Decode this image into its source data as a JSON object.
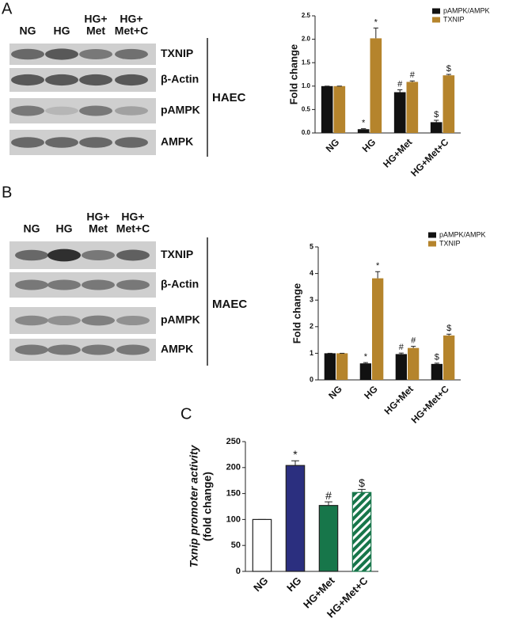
{
  "figure": {
    "blots": [
      {
        "label": "A",
        "lanes": [
          [
            "NG"
          ],
          [
            "HG"
          ],
          [
            "HG+",
            "Met"
          ],
          [
            "HG+",
            "Met+C"
          ]
        ],
        "rows": [
          "TXNIP",
          "β-Actin",
          "pAMPK",
          "AMPK"
        ],
        "cell": "HAEC"
      },
      {
        "label": "B",
        "lanes": [
          [
            "NG"
          ],
          [
            "HG"
          ],
          [
            "HG+",
            "Met"
          ],
          [
            "HG+",
            "Met+C"
          ]
        ],
        "rows": [
          "TXNIP",
          "β-Actin",
          "pAMPK",
          "AMPK"
        ],
        "cell": "MAEC"
      }
    ],
    "panel_c_label": "C"
  },
  "chart_data": [
    {
      "type": "bar",
      "ylabel": [
        "Fold change"
      ],
      "categories": [
        "NG",
        "HG",
        "HG+Met",
        "HG+Met+C"
      ],
      "series": [
        {
          "name": "pAMPK/AMPK",
          "color": "#111111",
          "values": [
            1.0,
            0.08,
            0.87,
            0.23
          ],
          "errors": [
            0,
            0.01,
            0.05,
            0.04
          ],
          "annotations": [
            null,
            "*",
            "#",
            "$"
          ]
        },
        {
          "name": "TXNIP",
          "color": "#b5842c",
          "values": [
            1.0,
            2.02,
            1.09,
            1.23
          ],
          "errors": [
            0,
            0.22,
            0.02,
            0.02
          ],
          "annotations": [
            null,
            "*",
            "#",
            "$"
          ]
        }
      ],
      "ylim": [
        0,
        2.5
      ],
      "yticks": [
        {
          "value": 0,
          "label": "0.0"
        },
        0.5,
        {
          "value": 1,
          "label": "1.0"
        },
        1.5,
        {
          "value": 2,
          "label": "2.0"
        },
        2.5
      ],
      "legend": "upper right"
    },
    {
      "type": "bar",
      "ylabel": [
        "Fold change"
      ],
      "categories": [
        "NG",
        "HG",
        "HG+Met",
        "HG+Met+C"
      ],
      "series": [
        {
          "name": "pAMPK/AMPK",
          "color": "#111111",
          "values": [
            1.0,
            0.62,
            0.97,
            0.6
          ],
          "errors": [
            0,
            0.03,
            0.04,
            0.03
          ],
          "annotations": [
            null,
            "*",
            "#",
            "$"
          ]
        },
        {
          "name": "TXNIP",
          "color": "#b5842c",
          "values": [
            1.0,
            3.82,
            1.2,
            1.67
          ],
          "errors": [
            0,
            0.25,
            0.06,
            0.05
          ],
          "annotations": [
            null,
            "*",
            "#",
            "$"
          ]
        }
      ],
      "ylim": [
        0,
        5
      ],
      "yticks": [
        0,
        1,
        2,
        3,
        4,
        5
      ],
      "legend": "upper right"
    },
    {
      "type": "bar",
      "ylabel": [
        "Txnip promoter activity",
        "(fold change)"
      ],
      "categories": [
        "NG",
        "HG",
        "HG+Met",
        "HG+Met+C"
      ],
      "series": [
        {
          "values": [
            100,
            204,
            127,
            152
          ],
          "errors": [
            0,
            9,
            7,
            6
          ],
          "colors": [
            "#ffffff",
            "#2b2f7f",
            "#17764a",
            "#17764a"
          ],
          "hatch": [
            false,
            false,
            false,
            true
          ],
          "annotations": [
            null,
            "*",
            "#",
            "$"
          ]
        }
      ],
      "ylim": [
        0,
        250
      ],
      "yticks": [
        0,
        50,
        100,
        150,
        200,
        250
      ]
    }
  ]
}
